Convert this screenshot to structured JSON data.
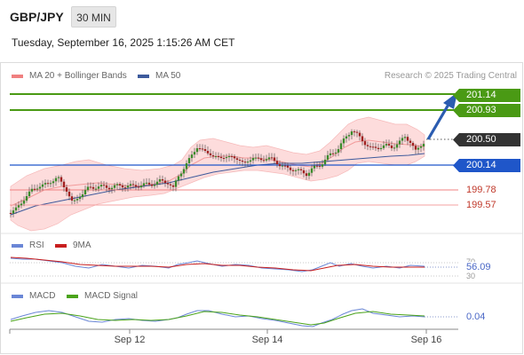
{
  "header": {
    "symbol": "GBP/JPY",
    "timeframe": "30 MIN",
    "datetime": "Tuesday, September 16, 2025 1:15:26 AM CET"
  },
  "legend": {
    "bollinger": "MA 20 + Bollinger Bands",
    "ma50": "MA 50",
    "credit": "Research © 2025 Trading Central"
  },
  "levels": {
    "r2": "201.14",
    "r1": "200.93",
    "last": "200.50",
    "pivot": "200.14",
    "s1": "199.78",
    "s2": "199.57"
  },
  "rsi": {
    "label": "RSI",
    "ma_label": "9MA",
    "value": "56.09",
    "upper": "70",
    "lower": "30"
  },
  "macd": {
    "label": "MACD",
    "signal_label": "MACD Signal",
    "value": "0.04"
  },
  "xaxis": [
    "Sep 12",
    "Sep 14",
    "Sep 16"
  ],
  "colors": {
    "green": "#4a9a14",
    "blue": "#1f56c9",
    "red": "#e05555",
    "bollinger_fill": "#fddcdc",
    "ma50": "#3d5a9c",
    "dark": "#333333",
    "rsi": "#6a86d6",
    "rsi_ma": "#c81e1e",
    "macd": "#6a86d6",
    "macd_signal": "#4aa31a"
  }
}
